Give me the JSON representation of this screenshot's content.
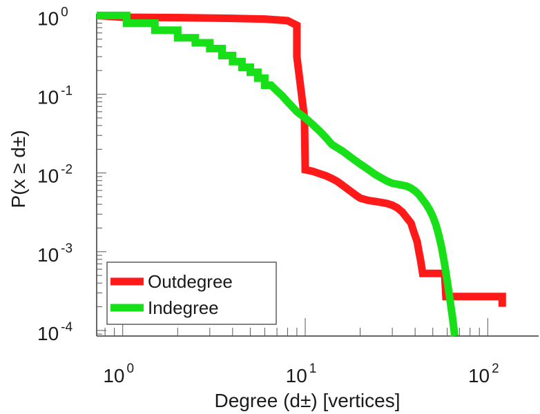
{
  "chart_data": {
    "type": "line",
    "step": true,
    "xlabel": "Degree (d±) [vertices]",
    "ylabel": "P(x ≥ d±)",
    "xscale": "log",
    "yscale": "log",
    "xlim": [
      0.72,
      190
    ],
    "ylim": [
      8.5e-05,
      1.05
    ],
    "grid": false,
    "legend_position": "bottom-left",
    "x_ticks": [
      {
        "base": "10",
        "exp": "0"
      },
      {
        "base": "10",
        "exp": "1"
      },
      {
        "base": "10",
        "exp": "2"
      }
    ],
    "y_ticks": [
      {
        "base": "10",
        "exp": "0"
      },
      {
        "base": "10",
        "exp": "-1"
      },
      {
        "base": "10",
        "exp": "-2"
      },
      {
        "base": "10",
        "exp": "-3"
      },
      {
        "base": "10",
        "exp": "-4"
      }
    ],
    "series": [
      {
        "name": "Outdegree",
        "color": "#ff1a1a",
        "points": [
          [
            0.72,
            1.0
          ],
          [
            1.0,
            0.95
          ],
          [
            2.0,
            0.94
          ],
          [
            4.0,
            0.92
          ],
          [
            6.0,
            0.9
          ],
          [
            8.0,
            0.86
          ],
          [
            9.0,
            0.75
          ],
          [
            9.0,
            0.3
          ],
          [
            9.9,
            0.05
          ],
          [
            10,
            0.011
          ],
          [
            11,
            0.0105
          ],
          [
            12,
            0.0098
          ],
          [
            13,
            0.0092
          ],
          [
            14,
            0.0085
          ],
          [
            15,
            0.0078
          ],
          [
            16,
            0.007
          ],
          [
            17,
            0.0063
          ],
          [
            18,
            0.0057
          ],
          [
            19,
            0.0052
          ],
          [
            20,
            0.0048
          ],
          [
            22,
            0.0045
          ],
          [
            25,
            0.0043
          ],
          [
            28,
            0.0041
          ],
          [
            30,
            0.0039
          ],
          [
            32,
            0.0036
          ],
          [
            34,
            0.0032
          ],
          [
            36,
            0.0027
          ],
          [
            38,
            0.0023
          ],
          [
            39,
            0.0019
          ],
          [
            40,
            0.0016
          ],
          [
            41,
            0.00135
          ],
          [
            42,
            0.001
          ],
          [
            43,
            0.00075
          ],
          [
            44,
            0.00053
          ],
          [
            50,
            0.00053
          ],
          [
            58,
            0.00053
          ],
          [
            59,
            0.00027
          ],
          [
            70,
            0.00027
          ],
          [
            100,
            0.00027
          ],
          [
            120,
            0.00027
          ],
          [
            120,
            0.0002
          ]
        ]
      },
      {
        "name": "Indegree",
        "color": "#18e018",
        "points": [
          [
            0.72,
            1.0
          ],
          [
            1.05,
            1.0
          ],
          [
            1.05,
            0.8
          ],
          [
            1.5,
            0.8
          ],
          [
            1.5,
            0.65
          ],
          [
            2.0,
            0.65
          ],
          [
            2.0,
            0.52
          ],
          [
            2.5,
            0.52
          ],
          [
            2.5,
            0.45
          ],
          [
            3.0,
            0.45
          ],
          [
            3.0,
            0.38
          ],
          [
            3.5,
            0.38
          ],
          [
            3.5,
            0.31
          ],
          [
            4.0,
            0.31
          ],
          [
            4.0,
            0.26
          ],
          [
            4.5,
            0.26
          ],
          [
            4.5,
            0.22
          ],
          [
            5.0,
            0.22
          ],
          [
            5.0,
            0.19
          ],
          [
            5.5,
            0.19
          ],
          [
            5.5,
            0.16
          ],
          [
            6.0,
            0.16
          ],
          [
            6.0,
            0.13
          ],
          [
            6.5,
            0.13
          ],
          [
            7.0,
            0.11
          ],
          [
            7.5,
            0.095
          ],
          [
            8.0,
            0.08
          ],
          [
            8.5,
            0.069
          ],
          [
            9.0,
            0.06
          ],
          [
            10,
            0.05
          ],
          [
            11,
            0.041
          ],
          [
            12,
            0.034
          ],
          [
            13,
            0.028
          ],
          [
            14,
            0.023
          ],
          [
            16,
            0.019
          ],
          [
            18,
            0.0155
          ],
          [
            20,
            0.013
          ],
          [
            22,
            0.0112
          ],
          [
            24,
            0.0097
          ],
          [
            26,
            0.0087
          ],
          [
            28,
            0.0079
          ],
          [
            30,
            0.0074
          ],
          [
            33,
            0.0071
          ],
          [
            36,
            0.0068
          ],
          [
            38,
            0.0064
          ],
          [
            40,
            0.0059
          ],
          [
            42,
            0.0053
          ],
          [
            44,
            0.0046
          ],
          [
            46,
            0.004
          ],
          [
            48,
            0.0034
          ],
          [
            50,
            0.0028
          ],
          [
            52,
            0.0022
          ],
          [
            54,
            0.0016
          ],
          [
            56,
            0.0011
          ],
          [
            58,
            0.0007
          ],
          [
            60,
            0.00042
          ],
          [
            62,
            0.00025
          ],
          [
            64,
            0.00015
          ],
          [
            66,
            8.5e-05
          ]
        ]
      }
    ]
  }
}
